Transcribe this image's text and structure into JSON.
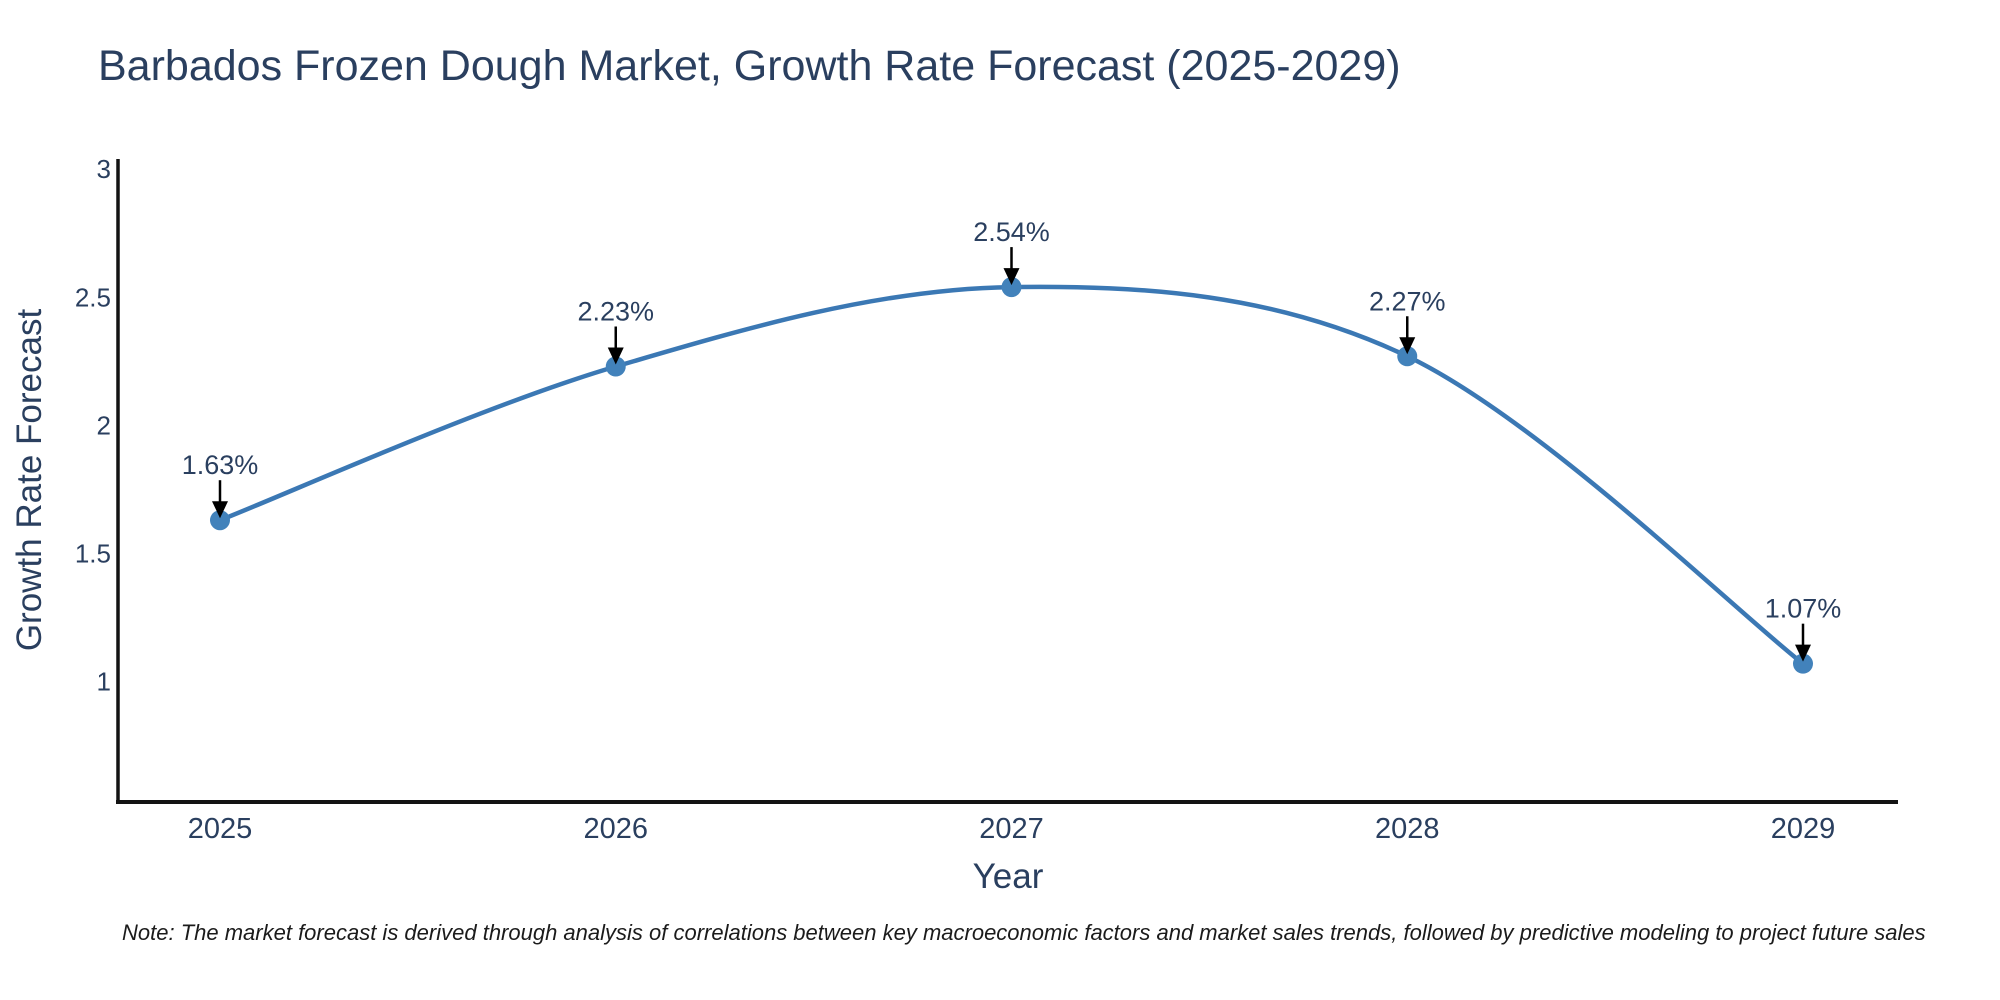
{
  "page": {
    "title": "Barbados Frozen Dough Market, Growth Rate Forecast (2025-2029)",
    "note": "Note: The market forecast is derived through analysis of correlations between key macroeconomic factors and market sales trends, followed by predictive modeling to project future sales"
  },
  "chart_data": {
    "type": "line",
    "title": "Barbados Frozen Dough Market, Growth Rate Forecast (2025-2029)",
    "xlabel": "Year",
    "ylabel": "Growth Rate Forecast",
    "categories": [
      "2025",
      "2026",
      "2027",
      "2028",
      "2029"
    ],
    "series": [
      {
        "name": "Growth Rate Forecast",
        "values": [
          1.63,
          2.23,
          2.54,
          2.27,
          1.07
        ],
        "point_labels": [
          "1.63%",
          "2.23%",
          "2.54%",
          "2.27%",
          "1.07%"
        ]
      }
    ],
    "line_shape": "spline",
    "markers": true,
    "annotations_with_arrows": true,
    "ylim": [
      0.53,
      3.04
    ],
    "yticks": [
      1,
      1.5,
      2,
      2.5,
      3
    ],
    "ytick_labels": [
      "1",
      "1.5",
      "2",
      "2.5",
      "3"
    ],
    "grid": false,
    "legend": false,
    "colors": {
      "line": "#3b78b4",
      "marker": "#4282bb",
      "arrow": "#000000",
      "text": "#2a3f5f",
      "axis_line": "#131313",
      "background": "#ffffff"
    }
  }
}
